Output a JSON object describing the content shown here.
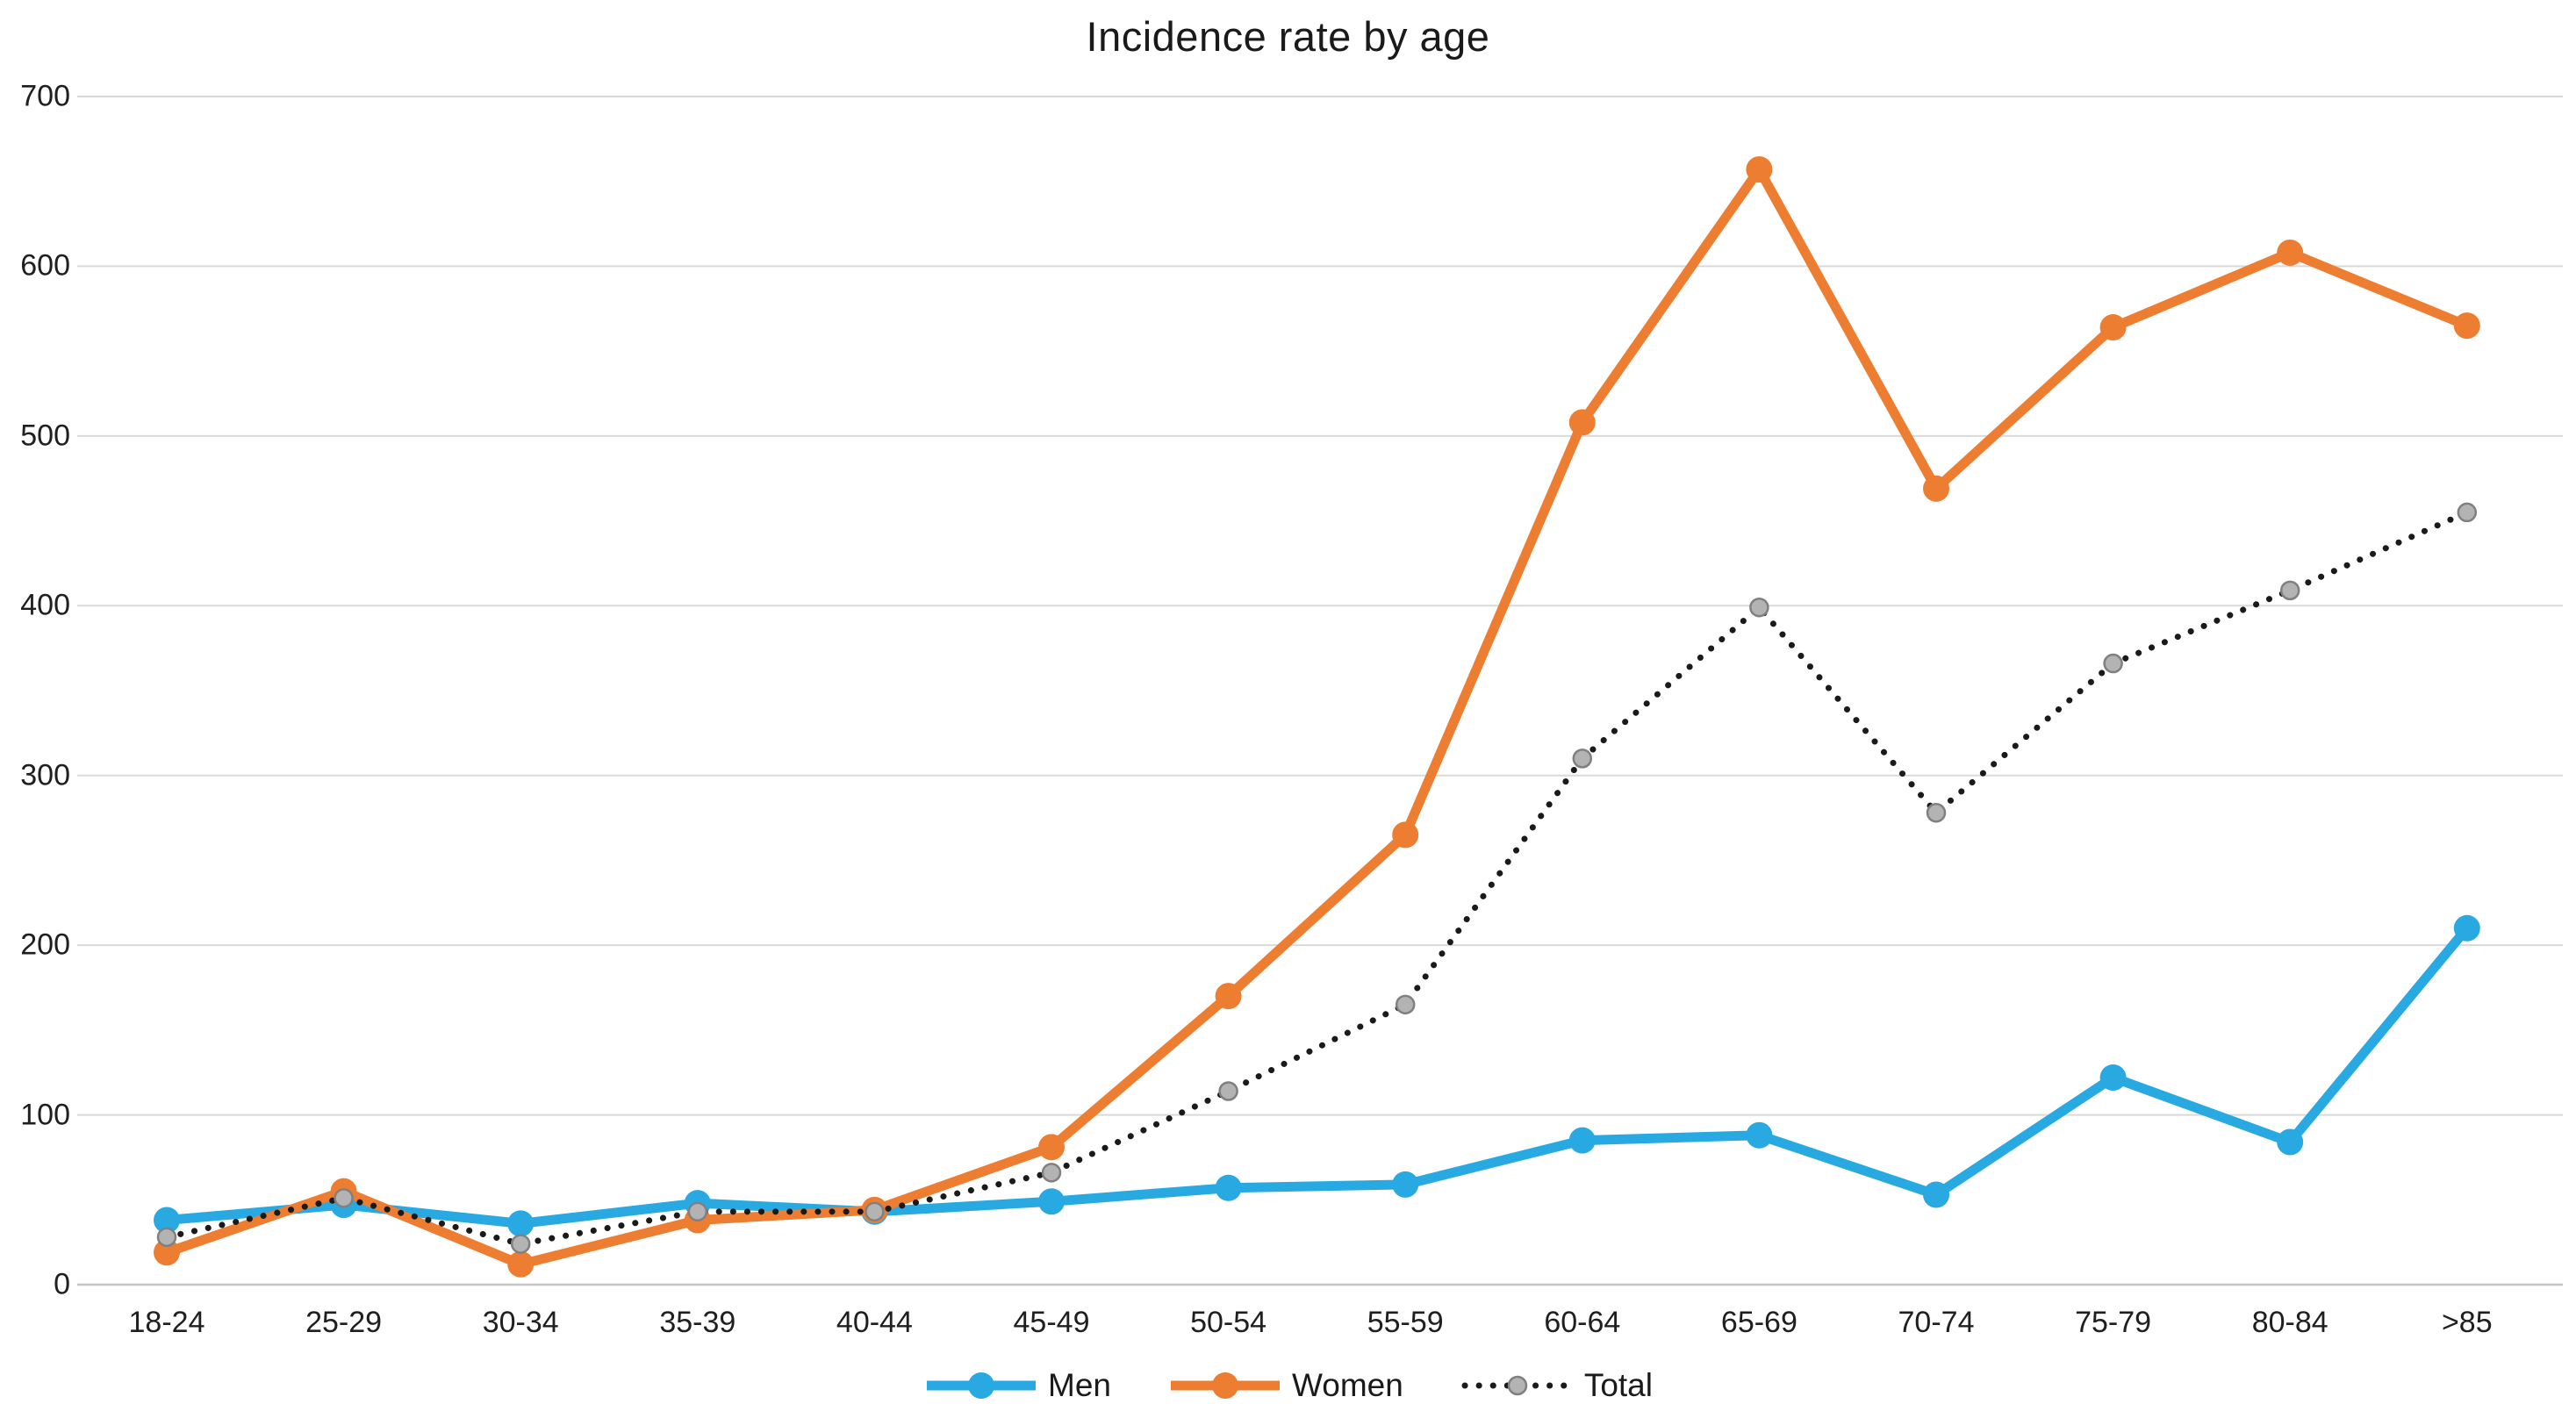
{
  "chart_data": {
    "type": "line",
    "title": "Incidence rate by age",
    "categories": [
      "18-24",
      "25-29",
      "30-34",
      "35-39",
      "40-44",
      "45-49",
      "50-54",
      "55-59",
      "60-64",
      "65-69",
      "70-74",
      "75-79",
      "80-84",
      ">85"
    ],
    "series": [
      {
        "name": "Men",
        "color": "#29a9e1",
        "line_style": "solid",
        "marker": "circle",
        "values": [
          38,
          47,
          36,
          48,
          43,
          49,
          57,
          59,
          85,
          88,
          53,
          122,
          84,
          210
        ]
      },
      {
        "name": "Women",
        "color": "#ed7d31",
        "line_style": "solid",
        "marker": "circle",
        "values": [
          19,
          55,
          12,
          38,
          44,
          81,
          170,
          265,
          508,
          657,
          469,
          564,
          608,
          565
        ]
      },
      {
        "name": "Total",
        "color": "#1a1a1a",
        "line_style": "dotted",
        "marker": "circle",
        "marker_fill": "#b3b3b3",
        "marker_stroke": "#808080",
        "values": [
          28,
          51,
          24,
          43,
          43,
          66,
          114,
          165,
          310,
          399,
          278,
          366,
          409,
          455
        ]
      }
    ],
    "xlabel": "",
    "ylabel": "",
    "ylim": [
      0,
      700
    ],
    "ytick_step": 100,
    "yticks": [
      "0",
      "100",
      "200",
      "300",
      "400",
      "500",
      "600",
      "700"
    ],
    "grid": true,
    "gridline_color": "#d9d9d9",
    "zeroline_color": "#c6c6c6",
    "legend_position": "bottom",
    "background": "#ffffff"
  }
}
